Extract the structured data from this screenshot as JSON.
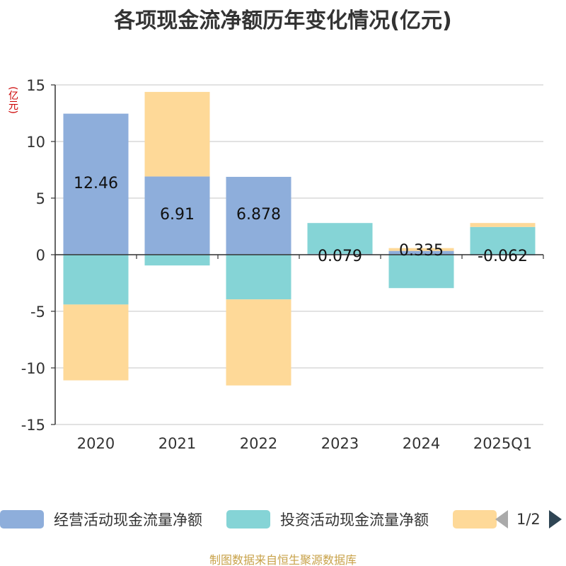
{
  "title": "各项现金流净额历年变化情况(亿元)",
  "y_unit": "(亿元)",
  "source": "制图数据来自恒生聚源数据库",
  "legend_page": "1/2",
  "colors": {
    "operating": "#8eaedb",
    "investing": "#85d4d6",
    "financing": "#fed998",
    "source_text": "#c8a24a",
    "unit_text": "#cc0000"
  },
  "chart_data": {
    "type": "bar",
    "stacked": true,
    "title": "各项现金流净额历年变化情况(亿元)",
    "ylabel": "(亿元)",
    "ylim": [
      -15,
      15
    ],
    "yticks": [
      15,
      10,
      5,
      0,
      -5,
      -10,
      -15
    ],
    "categories": [
      "2020",
      "2021",
      "2022",
      "2023",
      "2024",
      "2025Q1"
    ],
    "series": [
      {
        "name": "经营活动现金流量净额",
        "color": "#8eaedb",
        "values": [
          12.46,
          6.91,
          6.878,
          0.079,
          0.335,
          -0.062
        ],
        "labels": [
          "12.46",
          "6.91",
          "6.878",
          "0.079",
          "0.335",
          "-0.062"
        ]
      },
      {
        "name": "投资活动现金流量净额",
        "color": "#85d4d6",
        "values": [
          -4.4,
          -0.95,
          -3.95,
          2.72,
          -2.95,
          2.45
        ]
      },
      {
        "name": "",
        "color": "#fed998",
        "values": [
          -6.7,
          7.47,
          -7.6,
          0.0,
          0.25,
          0.35
        ]
      }
    ]
  }
}
